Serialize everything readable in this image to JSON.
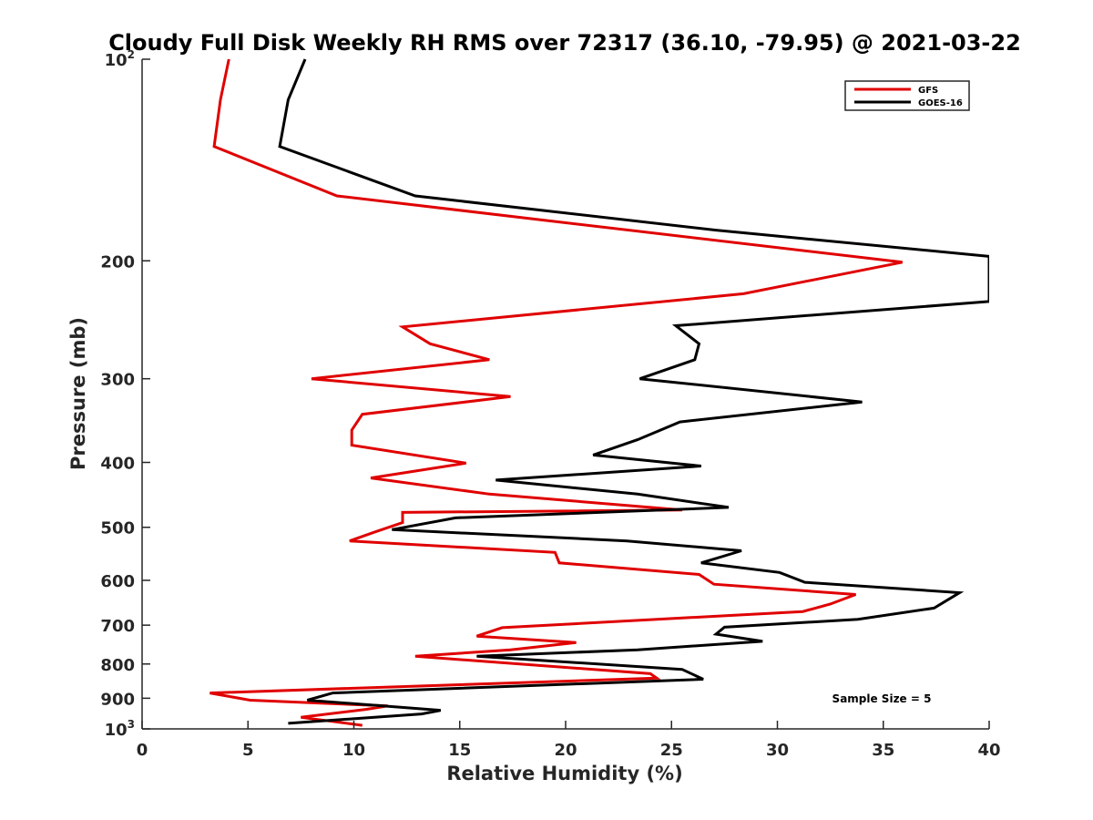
{
  "chart_data": {
    "type": "line",
    "title": "Cloudy Full Disk Weekly RH RMS over 72317 (36.10, -79.95) @ 2021-03-22",
    "xlabel": "Relative Humidity (%)",
    "ylabel": "Pressure (mb)",
    "xlim": [
      0,
      40
    ],
    "ylim": [
      100,
      1000
    ],
    "y_scale": "log",
    "y_reversed": true,
    "x_ticks": [
      "0",
      "5",
      "10",
      "15",
      "20",
      "25",
      "30",
      "35",
      "40"
    ],
    "y_ticks": [
      {
        "value": 100,
        "base": "10",
        "exp": "2"
      },
      {
        "value": 200,
        "text": "200"
      },
      {
        "value": 300,
        "text": "300"
      },
      {
        "value": 400,
        "text": "400"
      },
      {
        "value": 500,
        "text": "500"
      },
      {
        "value": 600,
        "text": "600"
      },
      {
        "value": 700,
        "text": "700"
      },
      {
        "value": 800,
        "text": "800"
      },
      {
        "value": 900,
        "text": "900"
      },
      {
        "value": 1000,
        "base": "10",
        "exp": "3"
      }
    ],
    "grid": false,
    "legend_position": "top-right",
    "annotation": "Sample Size = 5",
    "series": [
      {
        "name": "GFS",
        "color": "#e00000",
        "points": [
          [
            4.1,
            100
          ],
          [
            3.7,
            115
          ],
          [
            3.4,
            135
          ],
          [
            9.2,
            160
          ],
          [
            35.9,
            201
          ],
          [
            28.4,
            224
          ],
          [
            12.3,
            251
          ],
          [
            13.6,
            266
          ],
          [
            16.4,
            281
          ],
          [
            8.0,
            300
          ],
          [
            17.4,
            319
          ],
          [
            10.4,
            339
          ],
          [
            9.9,
            358
          ],
          [
            9.9,
            377
          ],
          [
            15.3,
            401
          ],
          [
            10.8,
            422
          ],
          [
            16.4,
            446
          ],
          [
            25.5,
            471
          ],
          [
            12.3,
            475
          ],
          [
            12.3,
            492
          ],
          [
            11.0,
            508
          ],
          [
            9.8,
            524
          ],
          [
            19.5,
            545
          ],
          [
            19.7,
            565
          ],
          [
            26.3,
            588
          ],
          [
            27.0,
            608
          ],
          [
            33.7,
            630
          ],
          [
            32.5,
            651
          ],
          [
            31.2,
            668
          ],
          [
            17.0,
            706
          ],
          [
            15.8,
            727
          ],
          [
            20.5,
            743
          ],
          [
            17.4,
            762
          ],
          [
            12.9,
            779
          ],
          [
            24.0,
            827
          ],
          [
            24.3,
            840
          ],
          [
            3.2,
            884
          ],
          [
            5.1,
            906
          ],
          [
            11.6,
            924
          ],
          [
            10.6,
            935
          ],
          [
            7.5,
            961
          ],
          [
            10.4,
            988
          ]
        ]
      },
      {
        "name": "GOES-16",
        "color": "#000000",
        "points": [
          [
            7.7,
            100
          ],
          [
            6.9,
            115
          ],
          [
            6.5,
            135
          ],
          [
            12.9,
            160
          ],
          [
            27.1,
            180
          ],
          [
            40.0,
            197
          ],
          [
            40.0,
            230
          ],
          [
            25.2,
            250
          ],
          [
            26.3,
            266
          ],
          [
            26.1,
            281
          ],
          [
            23.5,
            300
          ],
          [
            34.0,
            325
          ],
          [
            25.4,
            348
          ],
          [
            23.4,
            370
          ],
          [
            21.3,
            390
          ],
          [
            26.4,
            405
          ],
          [
            16.7,
            425
          ],
          [
            23.4,
            446
          ],
          [
            27.7,
            467
          ],
          [
            14.8,
            484
          ],
          [
            11.8,
            504
          ],
          [
            22.9,
            524
          ],
          [
            28.3,
            542
          ],
          [
            26.4,
            565
          ],
          [
            30.1,
            584
          ],
          [
            31.3,
            604
          ],
          [
            38.6,
            626
          ],
          [
            37.4,
            660
          ],
          [
            33.8,
            686
          ],
          [
            27.5,
            705
          ],
          [
            27.1,
            722
          ],
          [
            29.3,
            740
          ],
          [
            23.4,
            762
          ],
          [
            15.8,
            779
          ],
          [
            25.5,
            815
          ],
          [
            26.5,
            843
          ],
          [
            9.0,
            884
          ],
          [
            7.8,
            906
          ],
          [
            14.1,
            938
          ],
          [
            13.2,
            950
          ],
          [
            6.9,
            981
          ]
        ]
      }
    ]
  }
}
